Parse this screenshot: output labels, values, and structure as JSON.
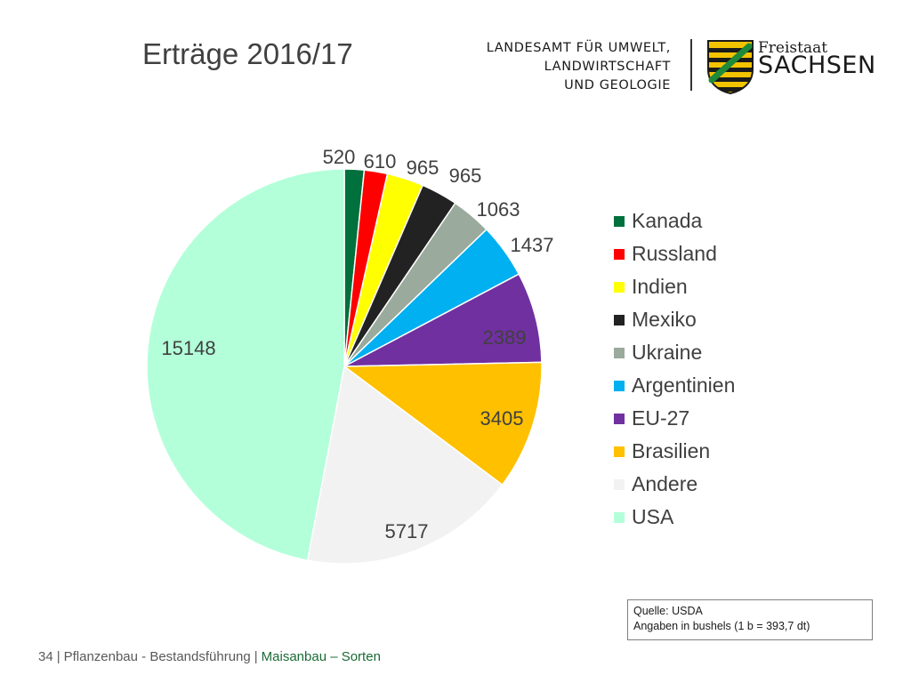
{
  "title": "Erträge 2016/17",
  "header": {
    "agency_lines": [
      "LANDESAMT FÜR UMWELT,",
      "LANDWIRTSCHAFT",
      "UND GEOLOGIE"
    ],
    "state_small": "Freistaat",
    "state_large": "SACHSEN",
    "coat_icon": "saxony-coat-of-arms-icon"
  },
  "chart_data": {
    "type": "pie",
    "title": "",
    "legend_position": "right",
    "categories": [
      "Kanada",
      "Russland",
      "Indien",
      "Mexiko",
      "Ukraine",
      "Argentinien",
      "EU-27",
      "Brasilien",
      "Andere",
      "USA"
    ],
    "values": [
      520,
      610,
      965,
      965,
      1063,
      1437,
      2389,
      3405,
      5717,
      15148
    ],
    "labels": [
      "520",
      "610",
      "965",
      "965",
      "1063",
      "1437",
      "2389",
      "3405",
      "5717",
      "15148"
    ],
    "colors": [
      "#00703c",
      "#ff0000",
      "#ffff00",
      "#222222",
      "#9aaa9c",
      "#00b0f0",
      "#7030a0",
      "#ffc000",
      "#f2f2f2",
      "#b3ffd9"
    ]
  },
  "source": {
    "line1": "Quelle: USDA",
    "line2": "Angaben in bushels (1 b = 393,7 dt)"
  },
  "footer": {
    "page": "34",
    "section": "Pflanzenbau - Bestandsführung",
    "topic": "Maisanbau – Sorten"
  }
}
